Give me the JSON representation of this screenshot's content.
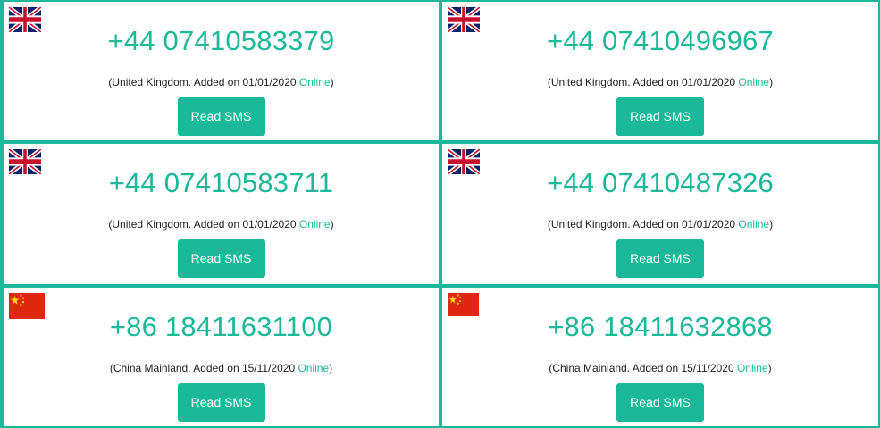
{
  "cards": [
    {
      "flag": "uk-flag-icon",
      "number": "+44 07410583379",
      "country": "(United Kingdom. Added on 01/01/2020",
      "status": "Online",
      "close": ")",
      "button": "Read SMS"
    },
    {
      "flag": "uk-flag-icon",
      "number": "+44 07410496967",
      "country": "(United Kingdom. Added on 01/01/2020",
      "status": "Online",
      "close": ")",
      "button": "Read SMS"
    },
    {
      "flag": "uk-flag-icon",
      "number": "+44 07410583711",
      "country": "(United Kingdom. Added on 01/01/2020",
      "status": "Online",
      "close": ")",
      "button": "Read SMS"
    },
    {
      "flag": "uk-flag-icon",
      "number": "+44 07410487326",
      "country": "(United Kingdom. Added on 01/01/2020",
      "status": "Online",
      "close": ")",
      "button": "Read SMS"
    },
    {
      "flag": "china-flag-icon",
      "number": "+86 18411631100",
      "country": "(China Mainland. Added on 15/11/2020",
      "status": "Online",
      "close": ")",
      "button": "Read SMS"
    },
    {
      "flag": "china-flag-icon",
      "number": "+86 18411632868",
      "country": "(China Mainland. Added on 15/11/2020",
      "status": "Online",
      "close": ")",
      "button": "Read SMS"
    }
  ],
  "colors": {
    "accent": "#1cb89a",
    "text": "#222222",
    "uk_blue": "#012169",
    "uk_red": "#C8102E",
    "cn_red": "#DE2910",
    "cn_star": "#FFDE00"
  }
}
